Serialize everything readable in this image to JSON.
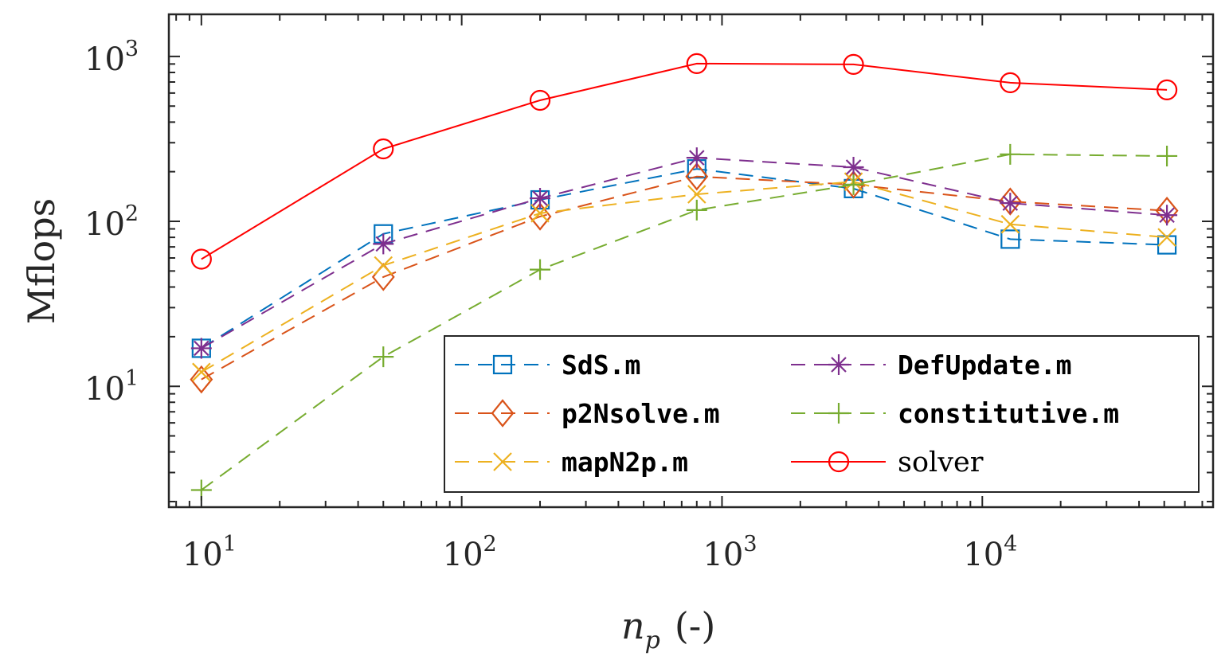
{
  "chart_data": {
    "type": "line",
    "title": "",
    "xlabel": "n_p (-)",
    "xlabel_main": "n",
    "xlabel_sub": "p",
    "xlabel_suffix": "(-)",
    "ylabel": "Mflops",
    "xscale": "log",
    "yscale": "log",
    "xlim": [
      7.5,
      77000
    ],
    "ylim": [
      1.85,
      1800
    ],
    "grid": false,
    "legend_position": "bottom-right",
    "x_ticks": [
      {
        "base": "10",
        "exp": "1",
        "value": 10
      },
      {
        "base": "10",
        "exp": "2",
        "value": 100
      },
      {
        "base": "10",
        "exp": "3",
        "value": 1000
      },
      {
        "base": "10",
        "exp": "4",
        "value": 10000
      }
    ],
    "y_ticks": [
      {
        "base": "10",
        "exp": "1",
        "value": 10
      },
      {
        "base": "10",
        "exp": "2",
        "value": 100
      },
      {
        "base": "10",
        "exp": "3",
        "value": 1000
      }
    ],
    "x": [
      10,
      50,
      200,
      800,
      3200,
      12800,
      51200
    ],
    "series": [
      {
        "name": "SdS.m",
        "color": "#0072BD",
        "marker": "square",
        "dash": true,
        "mono": true,
        "values": [
          17,
          84,
          135,
          208,
          158,
          78,
          72
        ]
      },
      {
        "name": "p2Nsolve.m",
        "color": "#D95319",
        "marker": "diamond",
        "dash": true,
        "mono": true,
        "values": [
          11,
          46,
          107,
          187,
          167,
          132,
          116
        ]
      },
      {
        "name": "mapN2p.m",
        "color": "#EDB120",
        "marker": "x",
        "dash": true,
        "mono": true,
        "values": [
          12.2,
          54,
          112,
          146,
          174,
          96,
          80
        ]
      },
      {
        "name": "DefUpdate.m",
        "color": "#7E2F8E",
        "marker": "asterisk",
        "dash": true,
        "mono": true,
        "values": [
          17,
          73,
          138,
          243,
          213,
          129,
          109
        ]
      },
      {
        "name": "constitutive.m",
        "color": "#77AC30",
        "marker": "plus",
        "dash": true,
        "mono": true,
        "values": [
          2.35,
          15.1,
          51,
          117,
          167,
          255,
          249
        ]
      },
      {
        "name": "solver",
        "color": "#FF0000",
        "marker": "circle",
        "dash": false,
        "mono": false,
        "values": [
          59,
          275,
          542,
          905,
          895,
          693,
          627
        ]
      }
    ]
  }
}
